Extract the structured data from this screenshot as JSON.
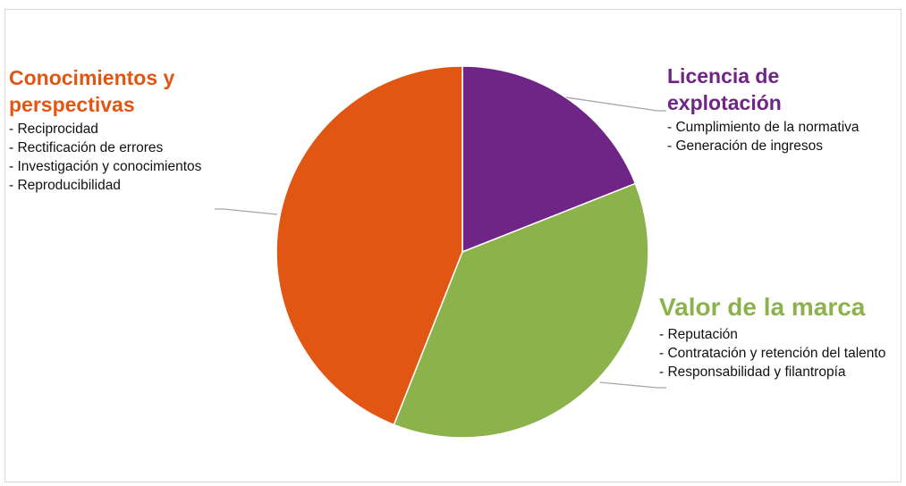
{
  "chart_data": {
    "type": "pie",
    "title": "",
    "slices": [
      {
        "label": "Licencia de explotación",
        "value": 19,
        "color": "#6e2585",
        "items": [
          "- Cumplimiento de la normativa",
          "- Generación de ingresos"
        ]
      },
      {
        "label": "Valor de la marca",
        "value": 37,
        "color": "#8cb24b",
        "items": [
          "- Reputación",
          "- Contratación y retención del talento",
          "- Responsabilidad y filantropía"
        ]
      },
      {
        "label": "Conocimientos y perspectivas",
        "value": 44,
        "color": "#e05612",
        "items": [
          "- Reciprocidad",
          "- Rectificación de errores",
          "- Investigación y conocimientos",
          "- Reproducibilidad"
        ]
      }
    ],
    "legend": "none"
  }
}
